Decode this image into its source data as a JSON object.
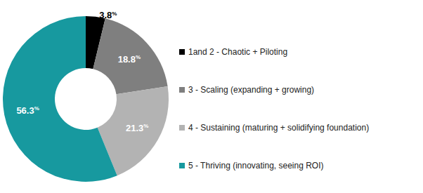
{
  "chart_data": {
    "type": "pie",
    "categories": [
      "1and 2 - Chaotic + Piloting",
      "3 - Scaling (expanding + growing)",
      "4 - Sustaining (maturing + solidifying foundation)",
      "5 - Thriving (innovating, seeing ROI)"
    ],
    "values": [
      3.8,
      18.8,
      21.3,
      56.3
    ],
    "value_labels": [
      "3.8%",
      "18.8%",
      "21.3%",
      "56.3%"
    ],
    "colors": [
      "#000000",
      "#7f7f7f",
      "#b3b3b3",
      "#17999f"
    ],
    "data_labels": true,
    "legend": "right"
  }
}
